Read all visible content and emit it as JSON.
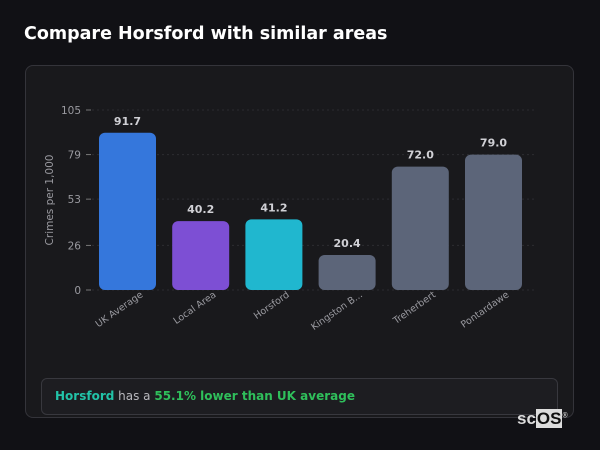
{
  "header": {
    "title": "Compare Horsford with similar areas"
  },
  "chart_data": {
    "type": "bar",
    "title": "",
    "xlabel": "",
    "ylabel": "Crimes per 1,000",
    "ylim": [
      0,
      105
    ],
    "yticks": [
      0,
      26,
      53,
      79,
      105
    ],
    "grid": true,
    "categories": [
      "UK Average",
      "Local Area",
      "Horsford",
      "Kingston B...",
      "Treherbert",
      "Pontardawe"
    ],
    "values": [
      91.7,
      40.2,
      41.2,
      20.4,
      72.0,
      79.0
    ],
    "value_labels": [
      "91.7",
      "40.2",
      "41.2",
      "20.4",
      "72.0",
      "79.0"
    ],
    "colors": [
      "#3577dc",
      "#7d4fd4",
      "#20b7cf",
      "#5c6579",
      "#5c6579",
      "#5c6579"
    ]
  },
  "summary": {
    "area": "Horsford",
    "middle": " has a ",
    "comparison": "55.1% lower than UK average"
  },
  "logo": {
    "text_a": "sc",
    "text_b": "OS",
    "mark": "®"
  }
}
